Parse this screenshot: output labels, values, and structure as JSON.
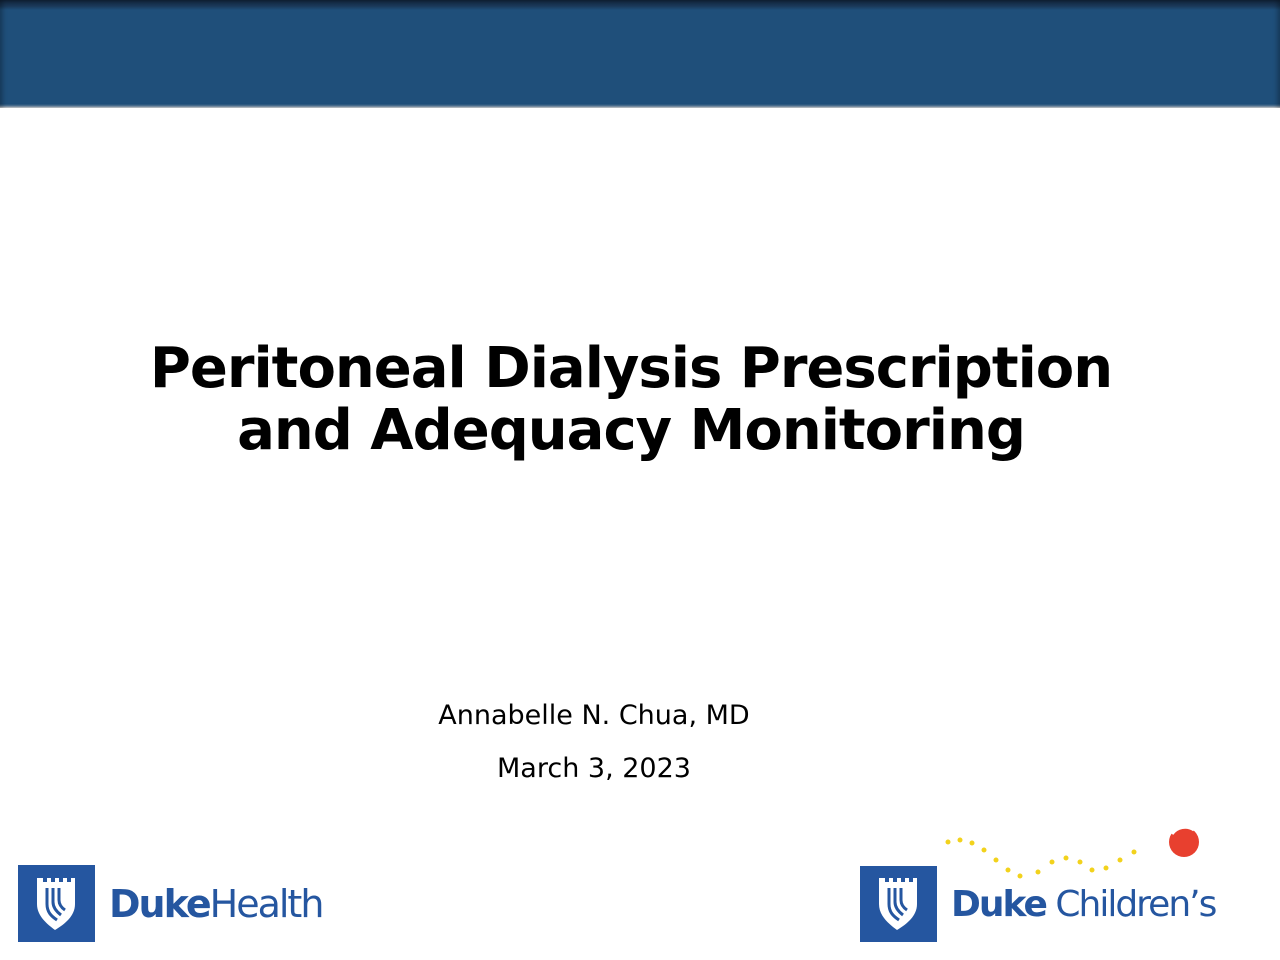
{
  "slide": {
    "title_line1": "Peritoneal Dialysis Prescription",
    "title_line2": "and Adequacy Monitoring",
    "author": "Annabelle N. Chua, MD",
    "date": "March 3, 2023"
  },
  "logos": {
    "left": {
      "bold": "Duke",
      "regular": "Health"
    },
    "right": {
      "bold": "Duke",
      "regular": "Children’s"
    }
  },
  "colors": {
    "banner": "#1f4f7a",
    "brand_blue": "#2556a0",
    "accent_red": "#e8402f",
    "accent_yellow": "#f2d21c"
  }
}
